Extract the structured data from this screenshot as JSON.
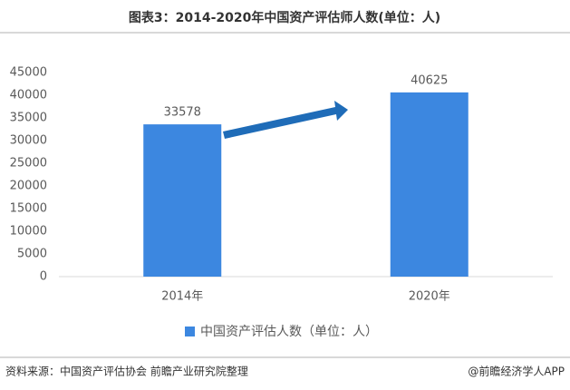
{
  "chart_data": {
    "type": "bar",
    "title": "图表3：2014-2020年中国资产评估师人数(单位：人)",
    "categories": [
      "2014年",
      "2020年"
    ],
    "series": [
      {
        "name": "中国资产评估人数（单位：人）",
        "color": "#3c87e0",
        "values": [
          33578,
          40625
        ]
      }
    ],
    "ylim": [
      0,
      45000
    ],
    "yticks": [
      0,
      5000,
      10000,
      15000,
      20000,
      25000,
      30000,
      35000,
      40000,
      45000
    ],
    "grid": false,
    "legend": "bottom"
  },
  "footer": {
    "source": "资料来源：中国资产评估协会 前瞻产业研究院整理",
    "brand": "@前瞻经济学人APP"
  }
}
